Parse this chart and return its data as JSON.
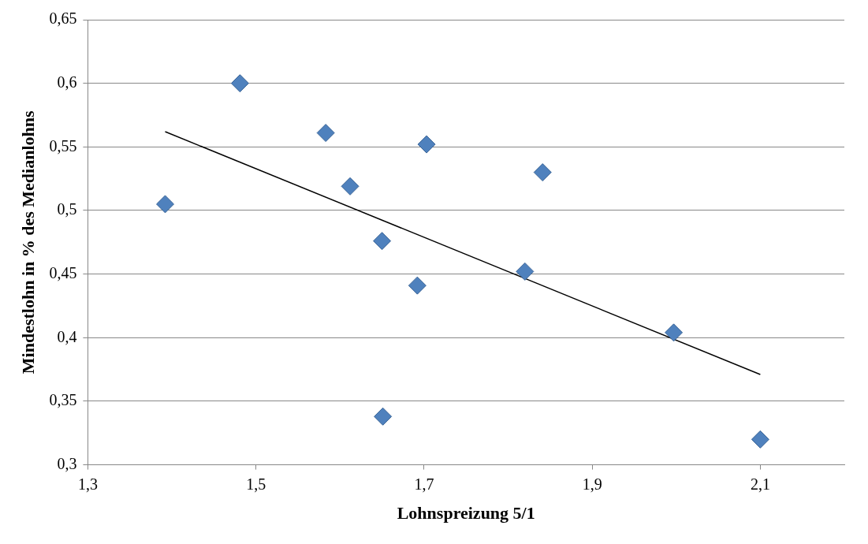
{
  "chart_data": {
    "type": "scatter",
    "xlabel": "Lohnspreizung 5/1",
    "ylabel": "Mindestlohn in % des Medianlohns",
    "xlim": [
      1.3,
      2.2
    ],
    "xticks": [
      {
        "value": 1.3,
        "label": "1,3"
      },
      {
        "value": 1.5,
        "label": "1,5"
      },
      {
        "value": 1.7,
        "label": "1,7"
      },
      {
        "value": 1.9,
        "label": "1,9"
      },
      {
        "value": 2.1,
        "label": "2,1"
      }
    ],
    "ylim": [
      0.3,
      0.65
    ],
    "yticks": [
      {
        "value": 0.3,
        "label": "0,3"
      },
      {
        "value": 0.35,
        "label": "0,35"
      },
      {
        "value": 0.4,
        "label": "0,4"
      },
      {
        "value": 0.45,
        "label": "0,45"
      },
      {
        "value": 0.5,
        "label": "0,5"
      },
      {
        "value": 0.55,
        "label": "0,55"
      },
      {
        "value": 0.6,
        "label": "0,6"
      },
      {
        "value": 0.65,
        "label": "0,65"
      }
    ],
    "grid": "y",
    "legend": false,
    "series": [
      {
        "marker": "diamond",
        "color": "#4f81bd",
        "x": [
          1.392,
          1.481,
          1.583,
          1.612,
          1.65,
          1.703,
          1.692,
          1.651,
          1.82,
          1.841,
          1.997,
          2.1
        ],
        "values": [
          0.505,
          0.6,
          0.561,
          0.519,
          0.476,
          0.552,
          0.441,
          0.338,
          0.452,
          0.53,
          0.404,
          0.32
        ]
      },
      {
        "type": "line",
        "color": "#000000",
        "x": [
          1.392,
          2.1
        ],
        "values": [
          0.562,
          0.371
        ]
      }
    ]
  }
}
